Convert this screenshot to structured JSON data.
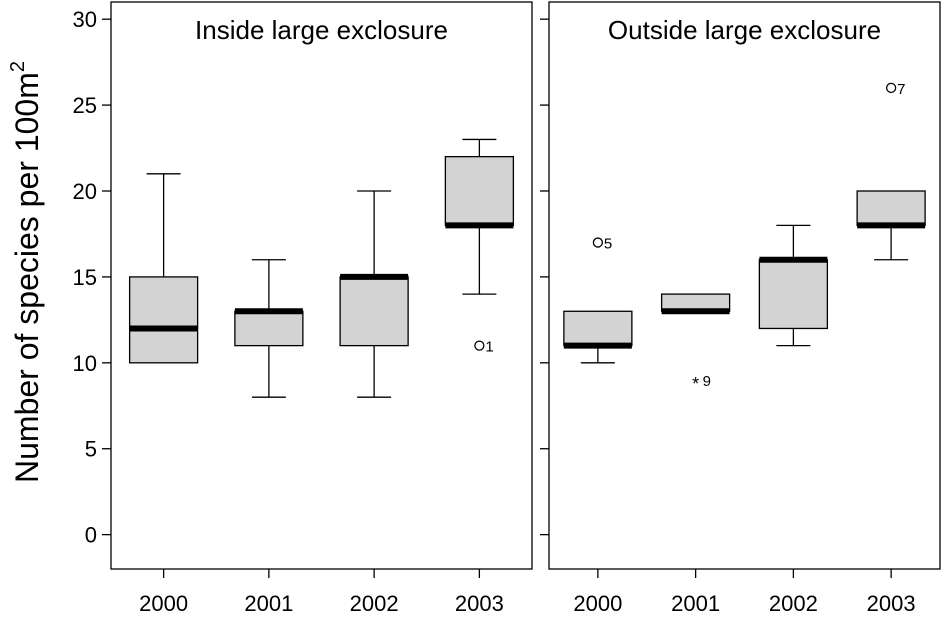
{
  "chart_data": {
    "type": "box",
    "ylabel": "Number of species per 100m",
    "ylabel_superscript": "2",
    "ylim": [
      -2,
      31
    ],
    "yticks": [
      0,
      5,
      10,
      15,
      20,
      25,
      30
    ],
    "categories": [
      "2000",
      "2001",
      "2002",
      "2003"
    ],
    "panels": [
      {
        "title": "Inside large exclosure",
        "boxes": [
          {
            "category": "2000",
            "whisker_low": 10,
            "q1": 10,
            "median": 12,
            "q3": 15,
            "whisker_high": 21
          },
          {
            "category": "2001",
            "whisker_low": 8,
            "q1": 11,
            "median": 13,
            "q3": 13,
            "whisker_high": 16
          },
          {
            "category": "2002",
            "whisker_low": 8,
            "q1": 11,
            "median": 15,
            "q3": 15,
            "whisker_high": 20
          },
          {
            "category": "2003",
            "whisker_low": 14,
            "q1": 18,
            "median": 18,
            "q3": 22,
            "whisker_high": 23
          }
        ],
        "outliers": [
          {
            "category": "2003",
            "value": 11,
            "label": "1",
            "marker": "circle"
          }
        ]
      },
      {
        "title": "Outside large exclosure",
        "boxes": [
          {
            "category": "2000",
            "whisker_low": 10,
            "q1": 11,
            "median": 11,
            "q3": 13,
            "whisker_high": 13
          },
          {
            "category": "2001",
            "whisker_low": 13,
            "q1": 13,
            "median": 13,
            "q3": 14,
            "whisker_high": 14
          },
          {
            "category": "2002",
            "whisker_low": 11,
            "q1": 12,
            "median": 16,
            "q3": 16,
            "whisker_high": 18
          },
          {
            "category": "2003",
            "whisker_low": 16,
            "q1": 18,
            "median": 18,
            "q3": 20,
            "whisker_high": 20
          }
        ],
        "outliers": [
          {
            "category": "2000",
            "value": 17,
            "label": "5",
            "marker": "circle"
          },
          {
            "category": "2001",
            "value": 9,
            "label": "9",
            "marker": "star"
          },
          {
            "category": "2003",
            "value": 26,
            "label": "7",
            "marker": "circle"
          }
        ]
      }
    ],
    "grid": false,
    "legend": "none"
  }
}
